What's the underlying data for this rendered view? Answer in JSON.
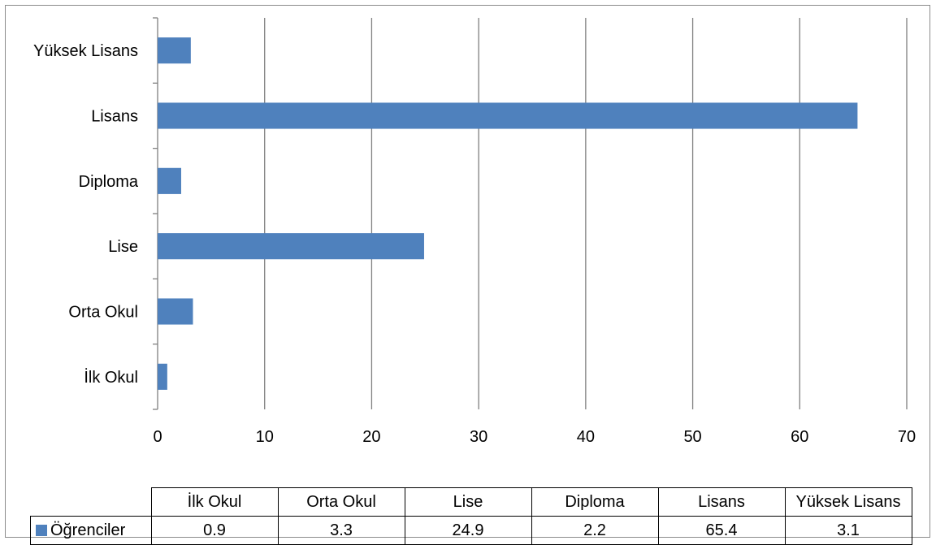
{
  "chart_data": {
    "type": "bar",
    "orientation": "horizontal",
    "categories": [
      "İlk Okul",
      "Orta Okul",
      "Lise",
      "Diploma",
      "Lisans",
      "Yüksek Lisans"
    ],
    "series": [
      {
        "name": "Öğrenciler",
        "values": [
          0.9,
          3.3,
          24.9,
          2.2,
          65.4,
          3.1
        ],
        "color": "#4f81bd"
      }
    ],
    "xlim": [
      0,
      70
    ],
    "xticks": [
      0,
      10,
      20,
      30,
      40,
      50,
      60,
      70
    ],
    "grid": true,
    "legend": "data-table-left",
    "data_table": {
      "headers": [
        "İlk Okul",
        "Orta Okul",
        "Lise",
        "Diploma",
        "Lisans",
        "Yüksek Lisans"
      ],
      "series_label": "Öğrenciler",
      "values": [
        "0.9",
        "3.3",
        "24.9",
        "2.2",
        "65.4",
        "3.1"
      ]
    }
  }
}
